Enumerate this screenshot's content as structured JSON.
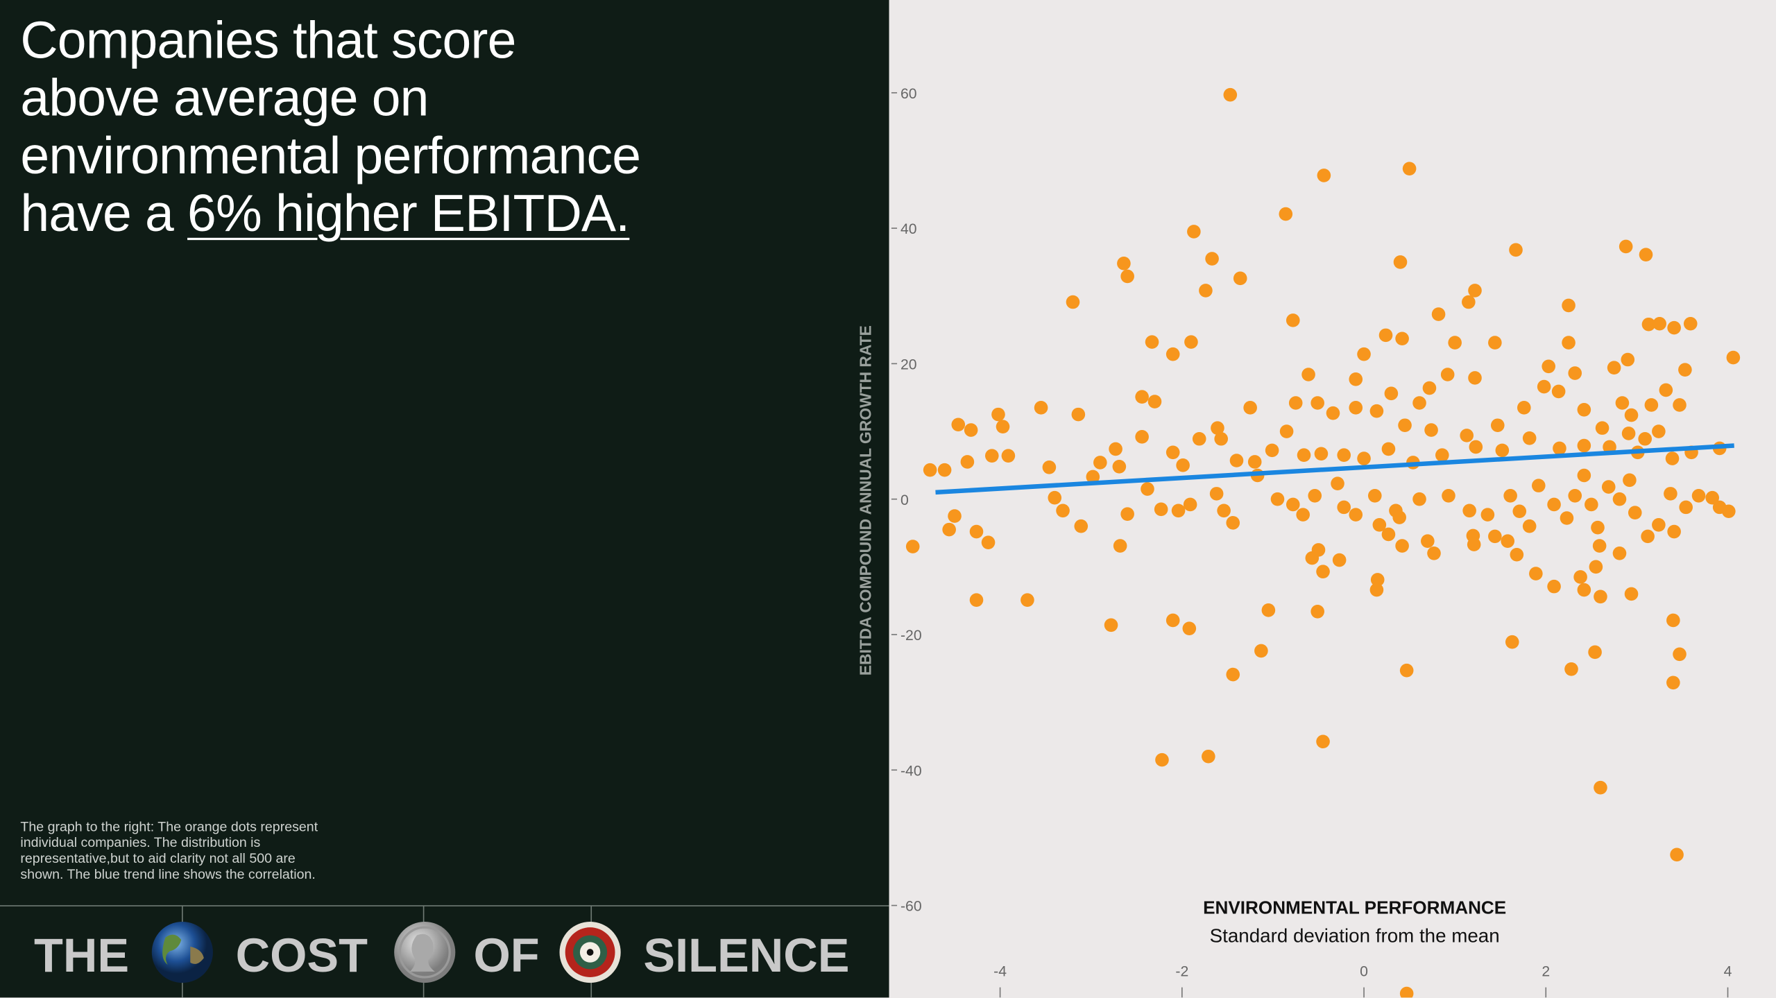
{
  "headline": {
    "lines": [
      "Companies that score",
      "above average on",
      "environmental performance"
    ],
    "lead": "have a",
    "highlight": "6% higher EBITDA."
  },
  "caption": "The graph to the right:  The orange dots represent individual companies. The distribution is representative,but to aid clarity not all 500 are shown. The blue trend line shows the correlation.",
  "footer": {
    "words": [
      "THE",
      "COST",
      "OF",
      "SILENCE"
    ]
  },
  "chart_data": {
    "type": "scatter",
    "y_label": "EBITDA COMPOUND ANNUAL GROWTH RATE",
    "x_label": "ENVIRONMENTAL PERFORMANCE",
    "x_sublabel": "Standard deviation from the mean",
    "xlim": [
      -5.22,
      4.53
    ],
    "ylim": [
      -73.6,
      73.7
    ],
    "xticks": [
      -4,
      -2,
      0,
      2,
      4
    ],
    "yticks": [
      -60,
      -40,
      -20,
      0,
      20,
      40,
      60
    ],
    "point_color": "#f7961d",
    "trend_color": "#1a86e0",
    "points": {
      "x": [
        -1.47,
        -0.44,
        0.5,
        -0.86,
        -1.87,
        -1.67,
        -2.64,
        -2.6,
        -1.36,
        0.4,
        1.67,
        2.88,
        3.1,
        -1.74,
        -3.2,
        1.22,
        1.15,
        2.25,
        -0.78,
        0.82,
        0.24,
        0.42,
        -2.33,
        -1.9,
        -2.1,
        1.0,
        1.44,
        2.25,
        3.13,
        3.25,
        3.41,
        3.59,
        4.06,
        3.53,
        2.9,
        2.75,
        2.03,
        2.32,
        0.92,
        1.22,
        0,
        -0.09,
        -0.61,
        -1.25,
        -2.44,
        -2.3,
        -3.55,
        -3.14,
        -4.02,
        -4.46,
        -4.32,
        -3.97,
        -2.44,
        -1.81,
        -1.61,
        -1.57,
        -0.85,
        -0.75,
        -0.51,
        -0.34,
        -0.09,
        0.14,
        0.3,
        0.61,
        0.72,
        0.45,
        0.74,
        1.13,
        1.47,
        1.76,
        1.98,
        2.14,
        2.42,
        2.62,
        2.84,
        2.94,
        3.16,
        3.32,
        3.47,
        2.91,
        3.09,
        3.24,
        3.91,
        -4.77,
        -4.61,
        -4.36,
        -4.09,
        -3.91,
        -3.46,
        -2.98,
        -2.9,
        -2.73,
        -2.69,
        -2.38,
        -2.1,
        -1.99,
        -1.4,
        -1.2,
        -1.01,
        -0.66,
        -0.47,
        -0.22,
        0,
        0.27,
        0.54,
        0.86,
        1.23,
        1.52,
        1.82,
        2.15,
        2.42,
        2.7,
        3.01,
        3.39,
        3.6,
        -3.4,
        -3.31,
        -3.11,
        -2.6,
        -2.04,
        -1.91,
        -1.62,
        -1.54,
        -1.44,
        -1.17,
        -0.95,
        -0.78,
        -0.67,
        -0.54,
        -0.29,
        -0.22,
        -0.09,
        0.12,
        0.17,
        0.27,
        0.42,
        0.35,
        0.61,
        0.7,
        0.77,
        0.93,
        1.16,
        1.2,
        1.36,
        1.44,
        1.61,
        1.71,
        1.82,
        1.92,
        2.09,
        2.23,
        2.32,
        2.42,
        2.5,
        2.57,
        2.59,
        2.69,
        2.81,
        2.92,
        2.98,
        3.12,
        3.24,
        3.37,
        3.41,
        3.54,
        3.68,
        3.83,
        3.91,
        4.01,
        -4.96,
        -4.56,
        -4.5,
        -4.26,
        -4.13,
        -2.68,
        -2.23,
        -0.57,
        -0.5,
        -0.45,
        -0.27,
        0.15,
        0.14,
        0.39,
        1.21,
        1.58,
        1.68,
        1.89,
        2.09,
        2.38,
        2.42,
        2.55,
        2.6,
        2.81,
        2.94,
        -4.26,
        -3.7,
        -2.78,
        -2.1,
        -1.92,
        -1.05,
        -0.51,
        -1.13,
        1.63,
        2.54,
        3.4,
        3.47,
        -1.44,
        0.47,
        2.28,
        3.4,
        -0.45,
        -2.22,
        -1.71,
        2.6,
        3.44,
        0.47
      ],
      "y": [
        59.7,
        47.8,
        48.8,
        42.1,
        39.5,
        35.5,
        34.8,
        32.9,
        32.6,
        35,
        36.8,
        37.3,
        36.1,
        30.8,
        29.1,
        30.8,
        29.1,
        28.6,
        26.4,
        27.3,
        24.2,
        23.7,
        23.2,
        23.2,
        21.4,
        23.1,
        23.1,
        23.1,
        25.8,
        25.9,
        25.3,
        25.9,
        20.9,
        19.1,
        20.6,
        19.4,
        19.6,
        18.6,
        18.4,
        17.9,
        21.4,
        17.7,
        18.4,
        13.5,
        15.1,
        14.4,
        13.5,
        12.5,
        12.5,
        11,
        10.2,
        10.7,
        9.2,
        8.9,
        10.5,
        8.9,
        10,
        14.2,
        14.2,
        12.7,
        13.5,
        13,
        15.6,
        14.2,
        16.4,
        10.9,
        10.2,
        9.4,
        10.9,
        13.5,
        16.6,
        15.9,
        13.2,
        10.5,
        14.2,
        12.4,
        13.9,
        16.1,
        13.9,
        9.7,
        8.9,
        10,
        7.5,
        4.3,
        4.3,
        5.5,
        6.4,
        6.4,
        4.7,
        3.3,
        5.4,
        7.4,
        4.8,
        1.5,
        6.9,
        5,
        5.7,
        5.5,
        7.2,
        6.5,
        6.7,
        6.5,
        6,
        7.4,
        5.4,
        6.5,
        7.7,
        7.2,
        9,
        7.5,
        7.9,
        7.7,
        6.9,
        6,
        6.9,
        0.2,
        -1.7,
        -4,
        -2.2,
        -1.7,
        -0.8,
        0.8,
        -1.7,
        -3.5,
        3.5,
        0,
        -0.8,
        -2.3,
        0.5,
        2.3,
        -1.2,
        -2.3,
        0.5,
        -3.8,
        -5.2,
        -6.9,
        -1.7,
        0,
        -6.2,
        -8,
        0.5,
        -1.7,
        -5.4,
        -2.3,
        -5.5,
        0.5,
        -1.8,
        -4,
        2,
        -0.8,
        -2.8,
        0.5,
        3.5,
        -0.8,
        -4.2,
        -6.9,
        1.8,
        0,
        2.8,
        -2,
        -5.5,
        -3.8,
        0.8,
        -4.8,
        -1.2,
        0.5,
        0.2,
        -1.2,
        -1.8,
        -7,
        -4.5,
        -2.5,
        -4.8,
        -6.4,
        -6.9,
        -1.5,
        -8.7,
        -7.5,
        -10.7,
        -9,
        -11.9,
        -13.4,
        -2.7,
        -6.7,
        -6.2,
        -8.2,
        -11,
        -12.9,
        -11.5,
        -13.4,
        -10,
        -14.4,
        -8,
        -14,
        -14.9,
        -14.9,
        -18.6,
        -17.9,
        -19.1,
        -16.4,
        -16.6,
        -22.4,
        -21.1,
        -22.6,
        -17.9,
        -22.9,
        -25.9,
        -25.3,
        -25.1,
        -27.1,
        -35.8,
        -38.5,
        -38,
        -42.6,
        -52.5,
        -73
      ]
    },
    "trend_line": {
      "x": [
        -4.71,
        4.07
      ],
      "y": [
        1.0,
        7.9
      ]
    }
  }
}
